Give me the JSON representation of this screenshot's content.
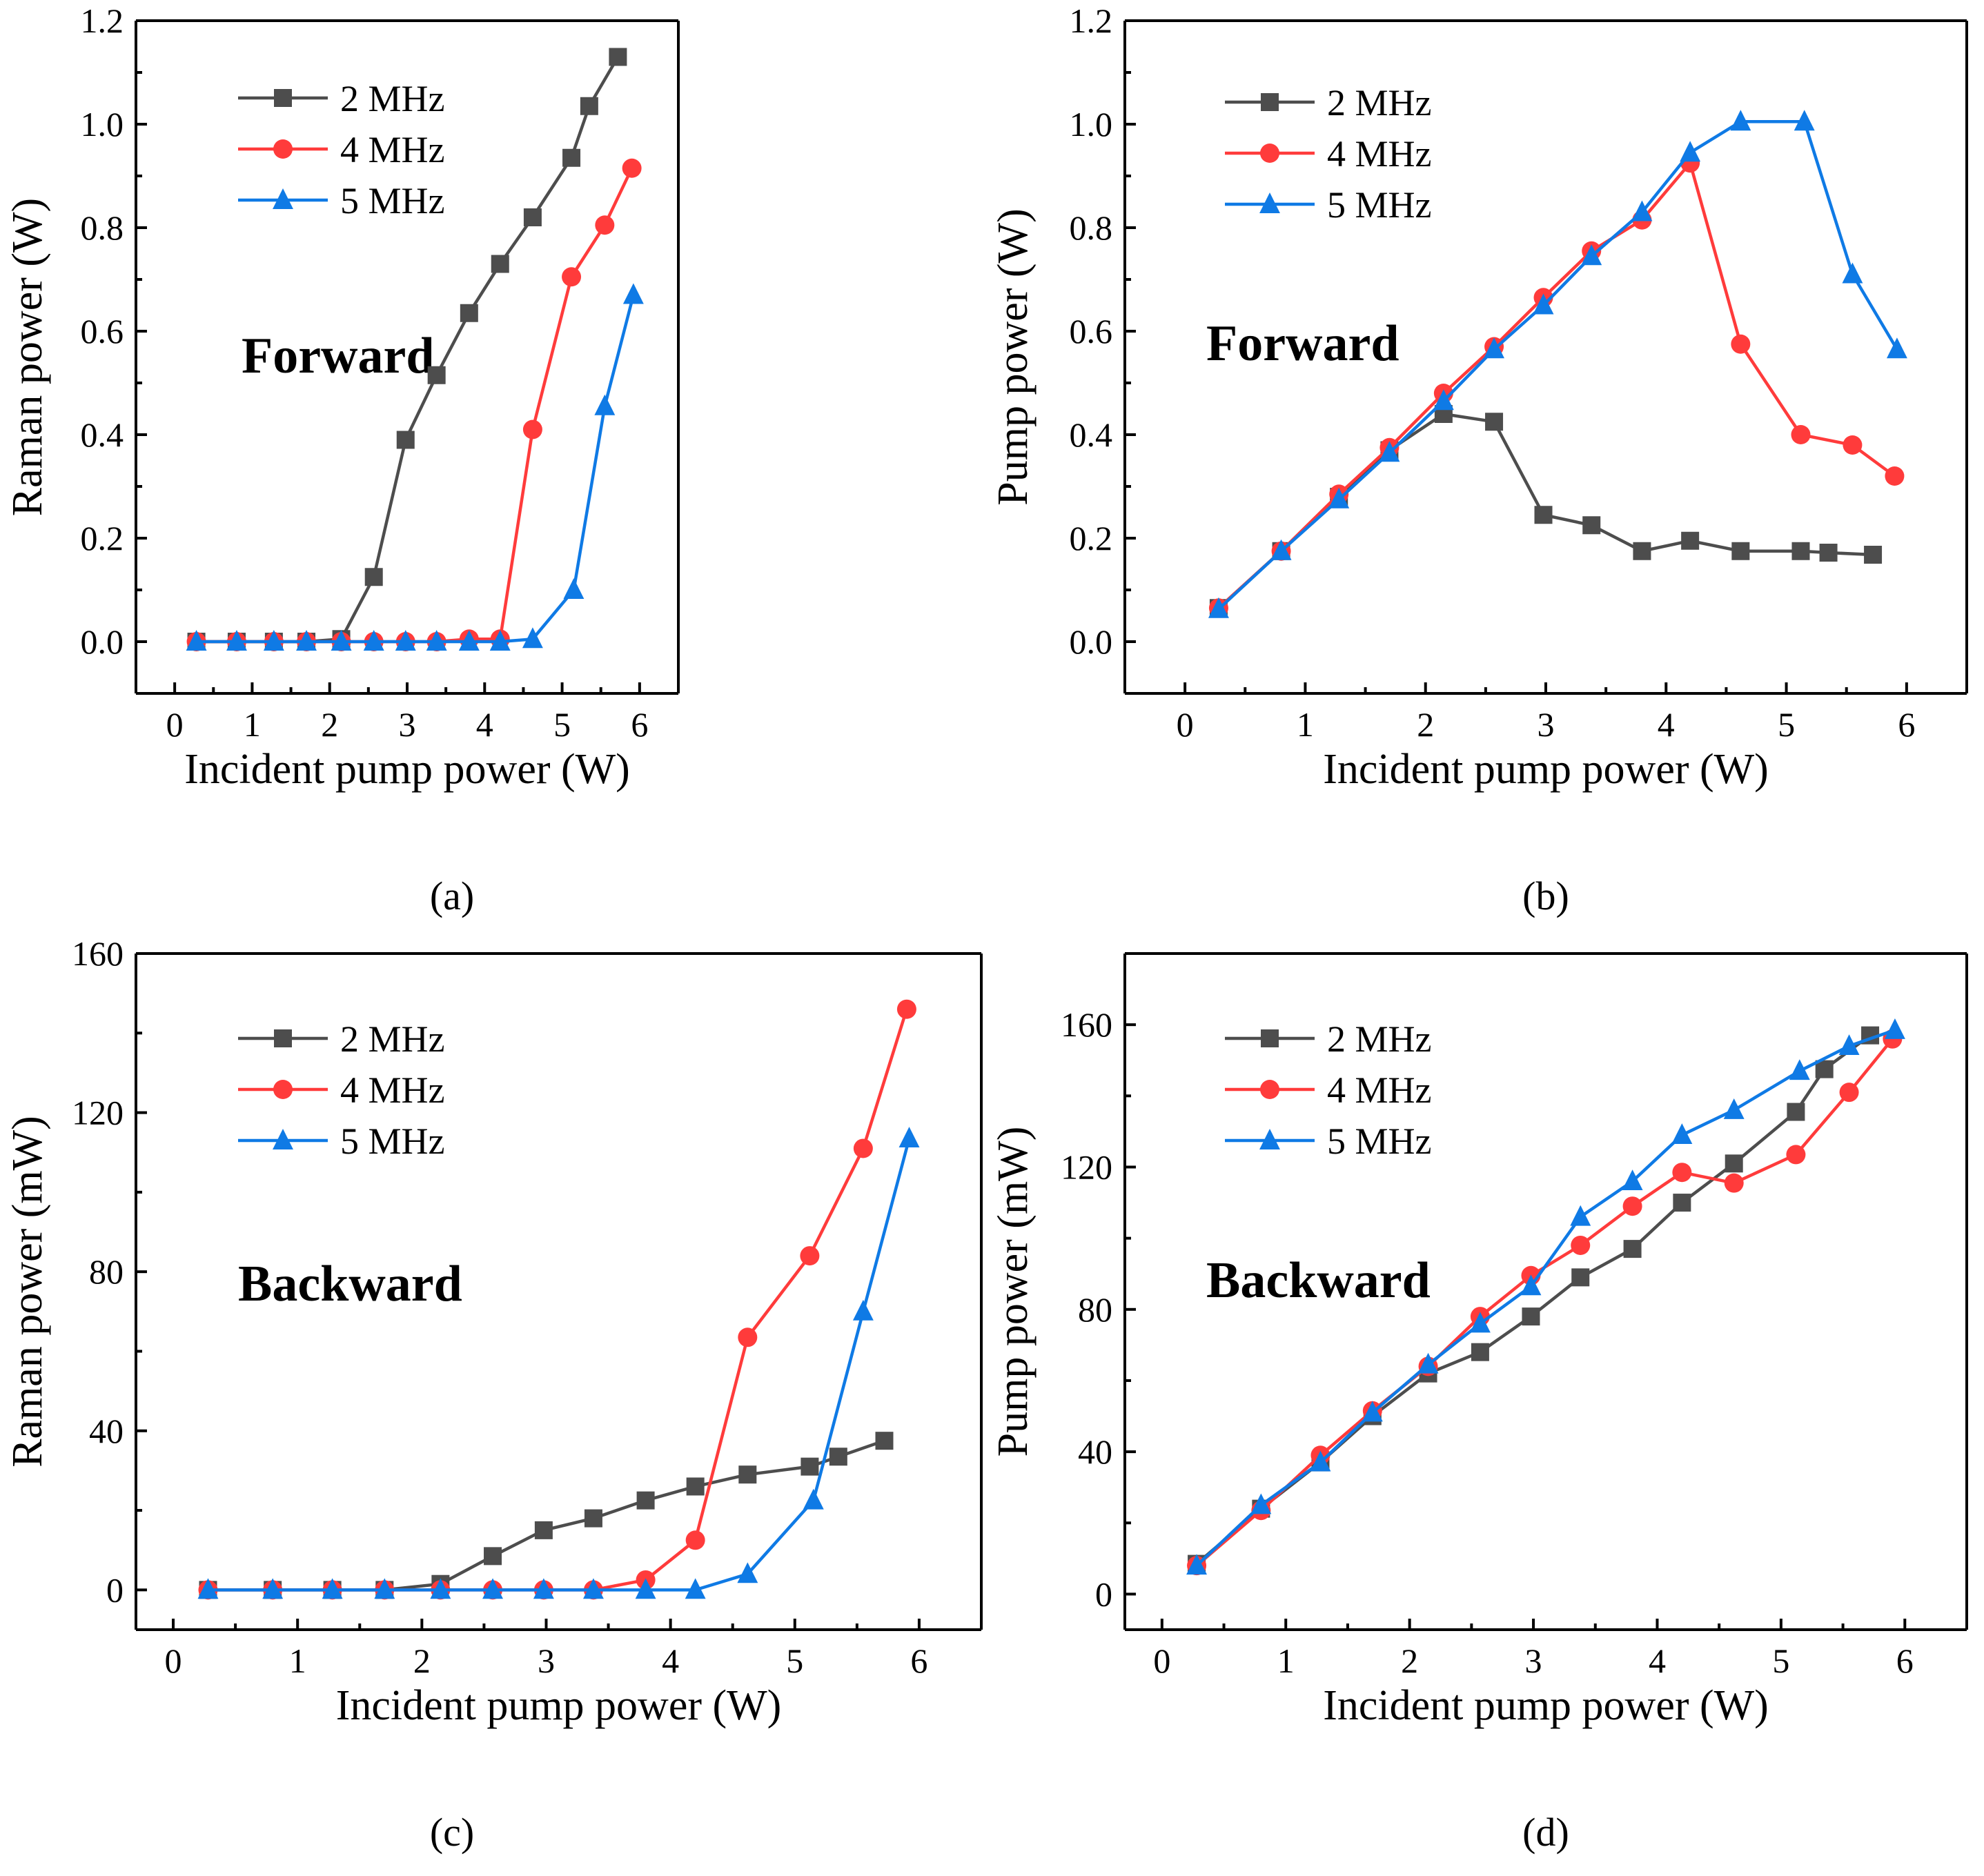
{
  "colors": {
    "2 MHz": "#4d4d4d",
    "4 MHz": "#ff3b3b",
    "5 MHz": "#0f7ae5"
  },
  "chart_data": [
    {
      "id": "a",
      "type": "line",
      "panel_label": "(a)",
      "annotation": "Forward",
      "xlabel": "Incident pump power (W)",
      "ylabel": "Raman power (W)",
      "xlim": [
        -0.5,
        6.5
      ],
      "ylim": [
        -0.1,
        1.2
      ],
      "xticks": [
        0,
        1,
        2,
        3,
        4,
        5,
        6
      ],
      "yticks": [
        0.0,
        0.2,
        0.4,
        0.6,
        0.8,
        1.0,
        1.2
      ],
      "ytick_labels": [
        "0.0",
        "0.2",
        "0.4",
        "0.6",
        "0.8",
        "1.0",
        "1.2"
      ],
      "legend": [
        "2 MHz",
        "4 MHz",
        "5 MHz"
      ],
      "series": [
        {
          "name": "2 MHz",
          "marker": "square",
          "x": [
            0.28,
            0.8,
            1.28,
            1.7,
            2.15,
            2.57,
            2.98,
            3.38,
            3.8,
            4.2,
            4.62,
            5.12,
            5.35,
            5.72
          ],
          "y": [
            0.0,
            0.0,
            0.0,
            0.0,
            0.005,
            0.125,
            0.39,
            0.515,
            0.635,
            0.73,
            0.82,
            0.935,
            1.035,
            1.13
          ]
        },
        {
          "name": "4 MHz",
          "marker": "circle",
          "x": [
            0.28,
            0.8,
            1.28,
            1.7,
            2.15,
            2.57,
            2.98,
            3.38,
            3.8,
            4.2,
            4.62,
            5.12,
            5.55,
            5.9
          ],
          "y": [
            0.0,
            0.0,
            0.0,
            0.0,
            0.0,
            0.0,
            0.0,
            0.0,
            0.005,
            0.005,
            0.41,
            0.705,
            0.805,
            0.915
          ]
        },
        {
          "name": "5 MHz",
          "marker": "triangle",
          "x": [
            0.28,
            0.8,
            1.28,
            1.7,
            2.15,
            2.57,
            2.98,
            3.38,
            3.8,
            4.2,
            4.62,
            5.15,
            5.55,
            5.92
          ],
          "y": [
            0.0,
            0.0,
            0.0,
            0.0,
            0.0,
            0.0,
            0.0,
            0.0,
            0.0,
            0.0,
            0.005,
            0.1,
            0.455,
            0.67
          ]
        }
      ]
    },
    {
      "id": "b",
      "type": "line",
      "panel_label": "(b)",
      "annotation": "Forward",
      "xlabel": "Incident pump power (W)",
      "ylabel": "Pump power (W)",
      "xlim": [
        -0.5,
        6.5
      ],
      "ylim": [
        -0.1,
        1.2
      ],
      "xticks": [
        0,
        1,
        2,
        3,
        4,
        5,
        6
      ],
      "yticks": [
        0.0,
        0.2,
        0.4,
        0.6,
        0.8,
        1.0,
        1.2
      ],
      "ytick_labels": [
        "0.0",
        "0.2",
        "0.4",
        "0.6",
        "0.8",
        "1.0",
        "1.2"
      ],
      "legend": [
        "2 MHz",
        "4 MHz",
        "5 MHz"
      ],
      "series": [
        {
          "name": "2 MHz",
          "marker": "square",
          "x": [
            0.28,
            0.8,
            1.28,
            1.7,
            2.15,
            2.57,
            2.98,
            3.38,
            3.8,
            4.2,
            4.62,
            5.12,
            5.35,
            5.72
          ],
          "y": [
            0.065,
            0.175,
            0.28,
            0.37,
            0.44,
            0.425,
            0.245,
            0.225,
            0.175,
            0.195,
            0.175,
            0.175,
            0.172,
            0.168
          ]
        },
        {
          "name": "4 MHz",
          "marker": "circle",
          "x": [
            0.28,
            0.8,
            1.28,
            1.7,
            2.15,
            2.57,
            2.98,
            3.38,
            3.8,
            4.2,
            4.62,
            5.12,
            5.55,
            5.9
          ],
          "y": [
            0.065,
            0.175,
            0.285,
            0.375,
            0.48,
            0.57,
            0.665,
            0.755,
            0.815,
            0.925,
            0.575,
            0.4,
            0.38,
            0.32
          ]
        },
        {
          "name": "5 MHz",
          "marker": "triangle",
          "x": [
            0.28,
            0.8,
            1.28,
            1.7,
            2.15,
            2.57,
            2.98,
            3.38,
            3.8,
            4.2,
            4.62,
            5.15,
            5.55,
            5.92
          ],
          "y": [
            0.063,
            0.175,
            0.275,
            0.365,
            0.465,
            0.565,
            0.65,
            0.745,
            0.83,
            0.945,
            1.005,
            1.005,
            0.71,
            0.565
          ]
        }
      ]
    },
    {
      "id": "c",
      "type": "line",
      "panel_label": "(c)",
      "annotation": "Backward",
      "xlabel": "Incident pump power (W)",
      "ylabel": "Raman power (mW)",
      "xlim": [
        -0.3,
        6.5
      ],
      "ylim": [
        -10,
        160
      ],
      "xticks": [
        0,
        1,
        2,
        3,
        4,
        5,
        6
      ],
      "yticks": [
        0,
        40,
        80,
        120,
        160
      ],
      "ytick_labels": [
        "0",
        "40",
        "80",
        "120",
        "160"
      ],
      "legend": [
        "2 MHz",
        "4 MHz",
        "5 MHz"
      ],
      "series": [
        {
          "name": "2 MHz",
          "marker": "square",
          "x": [
            0.28,
            0.8,
            1.28,
            1.7,
            2.15,
            2.57,
            2.98,
            3.38,
            3.8,
            4.2,
            4.62,
            5.12,
            5.35,
            5.72
          ],
          "y": [
            0,
            0,
            0,
            0,
            1.5,
            8.5,
            15,
            18,
            22.5,
            26,
            29,
            31,
            33.5,
            37.5
          ]
        },
        {
          "name": "4 MHz",
          "marker": "circle",
          "x": [
            0.28,
            0.8,
            1.28,
            1.7,
            2.15,
            2.57,
            2.98,
            3.38,
            3.8,
            4.2,
            4.62,
            5.12,
            5.55,
            5.9
          ],
          "y": [
            0,
            0,
            0,
            0,
            0,
            0,
            0,
            0,
            2.5,
            12.5,
            63.5,
            84,
            111,
            146
          ]
        },
        {
          "name": "5 MHz",
          "marker": "triangle",
          "x": [
            0.28,
            0.8,
            1.28,
            1.7,
            2.15,
            2.57,
            2.98,
            3.38,
            3.8,
            4.2,
            4.62,
            5.15,
            5.55,
            5.92
          ],
          "y": [
            0,
            0,
            0,
            0,
            0,
            0,
            0,
            0,
            0,
            0,
            4,
            22.5,
            70,
            113.5
          ]
        }
      ]
    },
    {
      "id": "d",
      "type": "line",
      "panel_label": "(d)",
      "annotation": "Backward",
      "xlabel": "Incident pump power (W)",
      "ylabel": "Pump power (mW)",
      "xlim": [
        -0.3,
        6.5
      ],
      "ylim": [
        -10,
        180
      ],
      "xticks": [
        0,
        1,
        2,
        3,
        4,
        5,
        6
      ],
      "yticks": [
        0,
        40,
        80,
        120,
        160
      ],
      "ytick_labels": [
        "0",
        "40",
        "80",
        "120",
        "160"
      ],
      "legend": [
        "2 MHz",
        "4 MHz",
        "5 MHz"
      ],
      "series": [
        {
          "name": "2 MHz",
          "marker": "square",
          "x": [
            0.28,
            0.8,
            1.28,
            1.7,
            2.15,
            2.57,
            2.98,
            3.38,
            3.8,
            4.2,
            4.62,
            5.12,
            5.35,
            5.72
          ],
          "y": [
            8.5,
            24,
            37,
            50,
            62,
            68,
            78,
            89,
            97,
            110,
            121,
            135.5,
            147.5,
            157
          ]
        },
        {
          "name": "4 MHz",
          "marker": "circle",
          "x": [
            0.28,
            0.8,
            1.28,
            1.7,
            2.15,
            2.57,
            2.98,
            3.38,
            3.8,
            4.2,
            4.62,
            5.12,
            5.55,
            5.9
          ],
          "y": [
            8,
            23.5,
            39,
            51.5,
            64,
            78,
            89.5,
            98,
            109,
            118.5,
            115.5,
            123.5,
            141,
            156
          ]
        },
        {
          "name": "5 MHz",
          "marker": "triangle",
          "x": [
            0.28,
            0.8,
            1.28,
            1.7,
            2.15,
            2.57,
            2.98,
            3.38,
            3.8,
            4.2,
            4.62,
            5.15,
            5.55,
            5.92
          ],
          "y": [
            8,
            25,
            37,
            51,
            64.5,
            76,
            86.5,
            106,
            116,
            129,
            136,
            147,
            154,
            158.5
          ]
        }
      ]
    }
  ]
}
